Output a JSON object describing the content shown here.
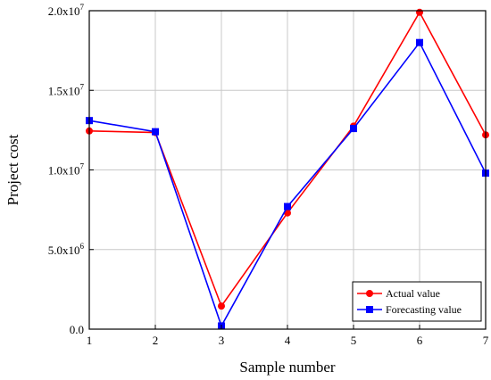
{
  "chart_data": {
    "type": "line",
    "xlabel": "Sample number",
    "ylabel": "Project cost",
    "x": [
      1,
      2,
      3,
      4,
      5,
      6,
      7
    ],
    "xlim": [
      1,
      7
    ],
    "ylim": [
      0,
      20000000
    ],
    "xticks": [
      1,
      2,
      3,
      4,
      5,
      6,
      7
    ],
    "yticks": [
      {
        "value": 0,
        "mantissa": "0.0",
        "exponent": ""
      },
      {
        "value": 5000000,
        "mantissa": "5.0x10",
        "exponent": "6"
      },
      {
        "value": 10000000,
        "mantissa": "1.0x10",
        "exponent": "7"
      },
      {
        "value": 15000000,
        "mantissa": "1.5x10",
        "exponent": "7"
      },
      {
        "value": 20000000,
        "mantissa": "2.0x10",
        "exponent": "7"
      }
    ],
    "grid": true,
    "legend_position": "bottom-right",
    "series": [
      {
        "name": "Actual value",
        "color": "#ff0000",
        "marker": "circle",
        "values": [
          12450000,
          12350000,
          1450000,
          7300000,
          12750000,
          19900000,
          12200000
        ]
      },
      {
        "name": "Forecasting value",
        "color": "#0000ff",
        "marker": "square",
        "values": [
          13100000,
          12400000,
          200000,
          7700000,
          12600000,
          18000000,
          9800000
        ]
      }
    ]
  }
}
